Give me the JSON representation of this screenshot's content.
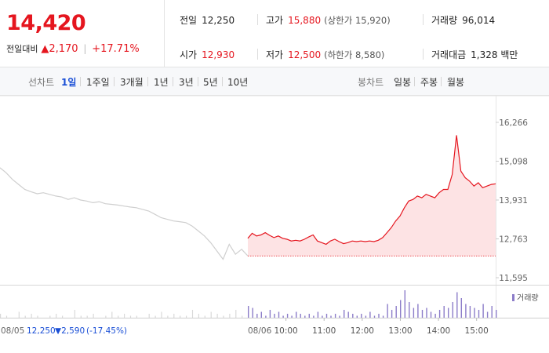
{
  "summary": {
    "current_price": "14,420",
    "change_label": "전일대비",
    "change_arrow": "▲",
    "change_value": "2,170",
    "change_rate": "+17.71%"
  },
  "stats": {
    "prev_close_label": "전일",
    "prev_close": "12,250",
    "high_label": "고가",
    "high": "15,880",
    "upper_limit": "(상한가 15,920)",
    "volume_label": "거래량",
    "volume": "96,014",
    "open_label": "시가",
    "open": "12,930",
    "low_label": "저가",
    "low": "12,500",
    "lower_limit": "(하한가 8,580)",
    "value_label": "거래대금",
    "value": "1,328 백만"
  },
  "tabs": {
    "line_label": "선차트",
    "line_periods": [
      "1일",
      "1주일",
      "3개월",
      "1년",
      "3년",
      "5년",
      "10년"
    ],
    "active_period": "1일",
    "candle_label": "봉차트",
    "candle_periods": [
      "일봉",
      "주봉",
      "월봉"
    ]
  },
  "chart_data": {
    "type": "line",
    "y_ticks": [
      "16,266",
      "15,098",
      "13,931",
      "12,763",
      "11,595"
    ],
    "ylim": [
      11595,
      16266
    ],
    "prev_day": {
      "date": "08/05",
      "close": "12,250",
      "change_arrow": "▼",
      "change": "2,590",
      "change_rate": "(-17.45%)",
      "values": [
        14900,
        14750,
        14550,
        14400,
        14250,
        14180,
        14120,
        14150,
        14100,
        14050,
        14020,
        13950,
        14000,
        13930,
        13900,
        13850,
        13880,
        13820,
        13800,
        13780,
        13750,
        13720,
        13700,
        13650,
        13600,
        13500,
        13400,
        13350,
        13300,
        13280,
        13250,
        13150,
        13000,
        12850,
        12650,
        12400,
        12150,
        12600,
        12300,
        12450,
        12250
      ]
    },
    "today": {
      "date": "08/06",
      "open": 12930,
      "base": 12250,
      "x_labels": [
        "10:00",
        "11:00",
        "12:00",
        "13:00",
        "14:00",
        "15:00"
      ],
      "values": [
        12780,
        12930,
        12850,
        12880,
        12950,
        12870,
        12800,
        12850,
        12780,
        12750,
        12700,
        12720,
        12700,
        12750,
        12820,
        12880,
        12700,
        12650,
        12600,
        12700,
        12750,
        12680,
        12620,
        12650,
        12700,
        12680,
        12700,
        12680,
        12700,
        12680,
        12720,
        12800,
        12950,
        13100,
        13300,
        13450,
        13700,
        13900,
        13950,
        14050,
        14000,
        14100,
        14050,
        14000,
        14150,
        14250,
        14250,
        14700,
        15880,
        14800,
        14600,
        14500,
        14350,
        14450,
        14300,
        14350,
        14400,
        14420
      ]
    },
    "volume_label": "거래량",
    "volume_prev": [
      2,
      1,
      0,
      3,
      1,
      2,
      1,
      0,
      1,
      2,
      1,
      0,
      4,
      1,
      1,
      2,
      0,
      1,
      3,
      1,
      2,
      1,
      1,
      0,
      2,
      1,
      3,
      1,
      2,
      1,
      1,
      4,
      2,
      1,
      3,
      2,
      1,
      2,
      4,
      1,
      2
    ],
    "volume_today": [
      6,
      5,
      2,
      3,
      1,
      4,
      2,
      3,
      1,
      2,
      1,
      3,
      2,
      1,
      2,
      1,
      3,
      1,
      2,
      1,
      2,
      1,
      4,
      3,
      2,
      1,
      2,
      1,
      3,
      1,
      2,
      1,
      7,
      4,
      6,
      9,
      14,
      8,
      5,
      7,
      4,
      5,
      3,
      2,
      4,
      6,
      5,
      8,
      13,
      10,
      7,
      6,
      5,
      4,
      7,
      3,
      6,
      4
    ]
  },
  "colors": {
    "up": "#e5161f",
    "down": "#1a4fd6",
    "prev_line": "#cfcfcf",
    "volume_today": "#8c7dc9",
    "volume_prev": "#d9d9d9"
  }
}
